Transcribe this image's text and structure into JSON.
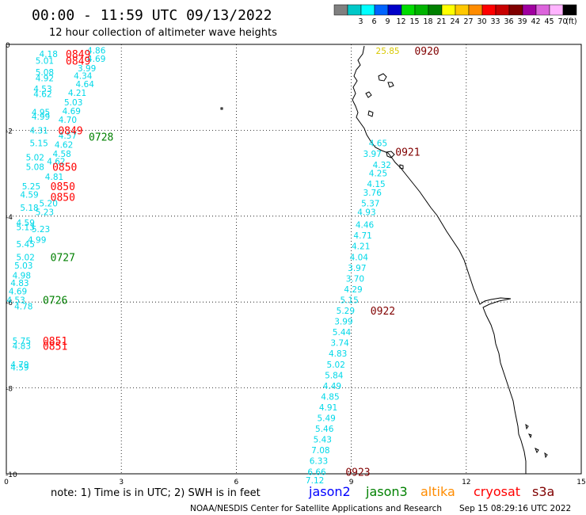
{
  "header": {
    "title": "00:00 - 11:59 UTC 09/13/2022",
    "subtitle": "12 hour collection of altimeter wave heights"
  },
  "legend": {
    "bins": [
      {
        "label": "",
        "color": "#808080"
      },
      {
        "label": "3",
        "color": "#00c8c8"
      },
      {
        "label": "6",
        "color": "#00ffff"
      },
      {
        "label": "9",
        "color": "#0064ff"
      },
      {
        "label": "12",
        "color": "#0000c8"
      },
      {
        "label": "15",
        "color": "#00dc00"
      },
      {
        "label": "18",
        "color": "#00b400"
      },
      {
        "label": "21",
        "color": "#008000"
      },
      {
        "label": "24",
        "color": "#ffff00"
      },
      {
        "label": "27",
        "color": "#ffc800"
      },
      {
        "label": "30",
        "color": "#ff8c00"
      },
      {
        "label": "33",
        "color": "#ff0000"
      },
      {
        "label": "36",
        "color": "#c80000"
      },
      {
        "label": "39",
        "color": "#800000"
      },
      {
        "label": "42",
        "color": "#a000a0"
      },
      {
        "label": "45",
        "color": "#dc64dc"
      },
      {
        "label": "70",
        "color": "#ffb4ff"
      },
      {
        "label": "(ft)",
        "color": "#000000"
      }
    ]
  },
  "axes": {
    "x_ticks": [
      "0",
      "3",
      "6",
      "9",
      "12",
      "15"
    ],
    "y_ticks": [
      "0",
      "-2",
      "-4",
      "-6",
      "-8",
      "-10"
    ]
  },
  "colors": {
    "swh": "#00d8e8",
    "swh_high": "#d8c800",
    "jason2": "#0000ff",
    "jason3": "#008000",
    "altika": "#ff8c00",
    "cryosat": "#ff0000",
    "s3a": "#800000"
  },
  "labels": [
    {
      "text": "4.18",
      "x": 1.1,
      "y": -0.22,
      "c": "swh"
    },
    {
      "text": "5.01",
      "x": 1.0,
      "y": -0.38,
      "c": "swh"
    },
    {
      "text": "4.86",
      "x": 2.35,
      "y": -0.14,
      "c": "swh"
    },
    {
      "text": "4.69",
      "x": 2.35,
      "y": -0.33,
      "c": "swh"
    },
    {
      "text": "3.99",
      "x": 2.1,
      "y": -0.55,
      "c": "swh"
    },
    {
      "text": "5.08",
      "x": 1.0,
      "y": -0.65,
      "c": "swh"
    },
    {
      "text": "4.92",
      "x": 1.0,
      "y": -0.78,
      "c": "swh"
    },
    {
      "text": "4.34",
      "x": 2.0,
      "y": -0.73,
      "c": "swh"
    },
    {
      "text": "4.64",
      "x": 2.05,
      "y": -0.92,
      "c": "swh"
    },
    {
      "text": "4.53",
      "x": 0.95,
      "y": -1.03,
      "c": "swh"
    },
    {
      "text": "4.62",
      "x": 0.95,
      "y": -1.15,
      "c": "swh"
    },
    {
      "text": "4.21",
      "x": 1.85,
      "y": -1.13,
      "c": "swh"
    },
    {
      "text": "5.03",
      "x": 1.75,
      "y": -1.35,
      "c": "swh"
    },
    {
      "text": "4.95",
      "x": 0.9,
      "y": -1.58,
      "c": "swh"
    },
    {
      "text": "4.99",
      "x": 0.9,
      "y": -1.68,
      "c": "swh"
    },
    {
      "text": "4.69",
      "x": 1.7,
      "y": -1.55,
      "c": "swh"
    },
    {
      "text": "4.70",
      "x": 1.6,
      "y": -1.75,
      "c": "swh"
    },
    {
      "text": "4.31",
      "x": 0.85,
      "y": -2.0,
      "c": "swh"
    },
    {
      "text": "4.57",
      "x": 1.6,
      "y": -2.12,
      "c": "swh"
    },
    {
      "text": "5.15",
      "x": 0.85,
      "y": -2.3,
      "c": "swh"
    },
    {
      "text": "4.62",
      "x": 1.5,
      "y": -2.33,
      "c": "swh"
    },
    {
      "text": "4.58",
      "x": 1.45,
      "y": -2.55,
      "c": "swh"
    },
    {
      "text": "5.02",
      "x": 0.75,
      "y": -2.63,
      "c": "swh"
    },
    {
      "text": "4.62",
      "x": 1.3,
      "y": -2.72,
      "c": "swh"
    },
    {
      "text": "5.08",
      "x": 0.75,
      "y": -2.85,
      "c": "swh"
    },
    {
      "text": "4.81",
      "x": 1.25,
      "y": -3.08,
      "c": "swh"
    },
    {
      "text": "5.25",
      "x": 0.65,
      "y": -3.3,
      "c": "swh"
    },
    {
      "text": "4.59",
      "x": 0.6,
      "y": -3.5,
      "c": "swh"
    },
    {
      "text": "5.20",
      "x": 1.1,
      "y": -3.7,
      "c": "swh"
    },
    {
      "text": "5.18",
      "x": 0.6,
      "y": -3.8,
      "c": "swh"
    },
    {
      "text": "5.23",
      "x": 1.0,
      "y": -3.9,
      "c": "swh"
    },
    {
      "text": "4.59",
      "x": 0.5,
      "y": -4.15,
      "c": "swh"
    },
    {
      "text": "5.13",
      "x": 0.5,
      "y": -4.25,
      "c": "swh"
    },
    {
      "text": "5.23",
      "x": 0.9,
      "y": -4.3,
      "c": "swh"
    },
    {
      "text": "4.99",
      "x": 0.8,
      "y": -4.55,
      "c": "swh"
    },
    {
      "text": "5.45",
      "x": 0.5,
      "y": -4.65,
      "c": "swh"
    },
    {
      "text": "5.02",
      "x": 0.5,
      "y": -4.95,
      "c": "swh"
    },
    {
      "text": "5.03",
      "x": 0.45,
      "y": -5.15,
      "c": "swh"
    },
    {
      "text": "4.98",
      "x": 0.4,
      "y": -5.38,
      "c": "swh"
    },
    {
      "text": "4.83",
      "x": 0.35,
      "y": -5.55,
      "c": "swh"
    },
    {
      "text": "4.69",
      "x": 0.3,
      "y": -5.75,
      "c": "swh"
    },
    {
      "text": "4.53",
      "x": 0.25,
      "y": -5.95,
      "c": "swh"
    },
    {
      "text": "4.78",
      "x": 0.45,
      "y": -6.1,
      "c": "swh"
    },
    {
      "text": "5.75",
      "x": 0.4,
      "y": -6.9,
      "c": "swh"
    },
    {
      "text": "4.83",
      "x": 0.4,
      "y": -7.02,
      "c": "swh"
    },
    {
      "text": "4.79",
      "x": 0.35,
      "y": -7.45,
      "c": "swh"
    },
    {
      "text": "4.59",
      "x": 0.35,
      "y": -7.52,
      "c": "swh"
    },
    {
      "text": "25.85",
      "x": 9.95,
      "y": -0.15,
      "c": "swh_high"
    },
    {
      "text": "4.65",
      "x": 9.7,
      "y": -2.3,
      "c": "swh"
    },
    {
      "text": "3.97",
      "x": 9.55,
      "y": -2.55,
      "c": "swh"
    },
    {
      "text": "4.32",
      "x": 9.8,
      "y": -2.8,
      "c": "swh"
    },
    {
      "text": "4.25",
      "x": 9.7,
      "y": -3.0,
      "c": "swh"
    },
    {
      "text": "4.15",
      "x": 9.65,
      "y": -3.25,
      "c": "swh"
    },
    {
      "text": "3.76",
      "x": 9.55,
      "y": -3.45,
      "c": "swh"
    },
    {
      "text": "5.37",
      "x": 9.5,
      "y": -3.7,
      "c": "swh"
    },
    {
      "text": "4.93",
      "x": 9.4,
      "y": -3.9,
      "c": "swh"
    },
    {
      "text": "4.46",
      "x": 9.35,
      "y": -4.2,
      "c": "swh"
    },
    {
      "text": "4.71",
      "x": 9.3,
      "y": -4.45,
      "c": "swh"
    },
    {
      "text": "4.21",
      "x": 9.25,
      "y": -4.7,
      "c": "swh"
    },
    {
      "text": "4.04",
      "x": 9.2,
      "y": -4.95,
      "c": "swh"
    },
    {
      "text": "3.97",
      "x": 9.15,
      "y": -5.2,
      "c": "swh"
    },
    {
      "text": "3.70",
      "x": 9.1,
      "y": -5.45,
      "c": "swh"
    },
    {
      "text": "4.29",
      "x": 9.05,
      "y": -5.7,
      "c": "swh"
    },
    {
      "text": "5.15",
      "x": 8.95,
      "y": -5.95,
      "c": "swh"
    },
    {
      "text": "5.29",
      "x": 8.85,
      "y": -6.2,
      "c": "swh"
    },
    {
      "text": "3.99",
      "x": 8.8,
      "y": -6.45,
      "c": "swh"
    },
    {
      "text": "5.44",
      "x": 8.75,
      "y": -6.7,
      "c": "swh"
    },
    {
      "text": "3.74",
      "x": 8.7,
      "y": -6.95,
      "c": "swh"
    },
    {
      "text": "4.83",
      "x": 8.65,
      "y": -7.2,
      "c": "swh"
    },
    {
      "text": "5.02",
      "x": 8.6,
      "y": -7.45,
      "c": "swh"
    },
    {
      "text": "5.84",
      "x": 8.55,
      "y": -7.7,
      "c": "swh"
    },
    {
      "text": "4.49",
      "x": 8.5,
      "y": -7.95,
      "c": "swh"
    },
    {
      "text": "4.85",
      "x": 8.45,
      "y": -8.2,
      "c": "swh"
    },
    {
      "text": "4.91",
      "x": 8.4,
      "y": -8.45,
      "c": "swh"
    },
    {
      "text": "5.49",
      "x": 8.35,
      "y": -8.7,
      "c": "swh"
    },
    {
      "text": "5.46",
      "x": 8.3,
      "y": -8.95,
      "c": "swh"
    },
    {
      "text": "5.43",
      "x": 8.25,
      "y": -9.2,
      "c": "swh"
    },
    {
      "text": "7.08",
      "x": 8.2,
      "y": -9.45,
      "c": "swh"
    },
    {
      "text": "6.33",
      "x": 8.15,
      "y": -9.7,
      "c": "swh"
    },
    {
      "text": "6.66",
      "x": 8.1,
      "y": -9.95,
      "c": "swh"
    },
    {
      "text": "7.12",
      "x": 8.05,
      "y": -10.15,
      "c": "swh"
    }
  ],
  "passes": [
    {
      "text": "0849",
      "x": 1.55,
      "y": -0.22,
      "c": "cryosat"
    },
    {
      "text": "0849",
      "x": 1.55,
      "y": -0.38,
      "c": "cryosat"
    },
    {
      "text": "0849",
      "x": 1.35,
      "y": -2.0,
      "c": "cryosat"
    },
    {
      "text": "0728",
      "x": 2.15,
      "y": -2.15,
      "c": "jason3"
    },
    {
      "text": "0850",
      "x": 1.2,
      "y": -2.85,
      "c": "cryosat"
    },
    {
      "text": "0850",
      "x": 1.15,
      "y": -3.3,
      "c": "cryosat"
    },
    {
      "text": "0850",
      "x": 1.15,
      "y": -3.55,
      "c": "cryosat"
    },
    {
      "text": "0727",
      "x": 1.15,
      "y": -4.95,
      "c": "jason3"
    },
    {
      "text": "0726",
      "x": 0.95,
      "y": -5.95,
      "c": "jason3"
    },
    {
      "text": "0851",
      "x": 0.95,
      "y": -6.9,
      "c": "cryosat"
    },
    {
      "text": "0851",
      "x": 0.95,
      "y": -7.02,
      "c": "cryosat"
    },
    {
      "text": "0920",
      "x": 10.65,
      "y": -0.15,
      "c": "s3a"
    },
    {
      "text": "0921",
      "x": 10.15,
      "y": -2.5,
      "c": "s3a"
    },
    {
      "text": "0922",
      "x": 9.5,
      "y": -6.2,
      "c": "s3a"
    },
    {
      "text": "0923",
      "x": 8.85,
      "y": -9.95,
      "c": "s3a"
    }
  ],
  "footer": {
    "note": "note: 1) Time is in UTC; 2) SWH is in feet",
    "sat_jason2": "jason2",
    "sat_jason3": "jason3",
    "sat_altika": "altika",
    "sat_cryosat": "cryosat",
    "sat_s3a": "s3a",
    "credit": "NOAA/NESDIS Center for Satellite Applications and Research",
    "timestamp": "Sep 15 08:29:16 UTC 2022"
  }
}
